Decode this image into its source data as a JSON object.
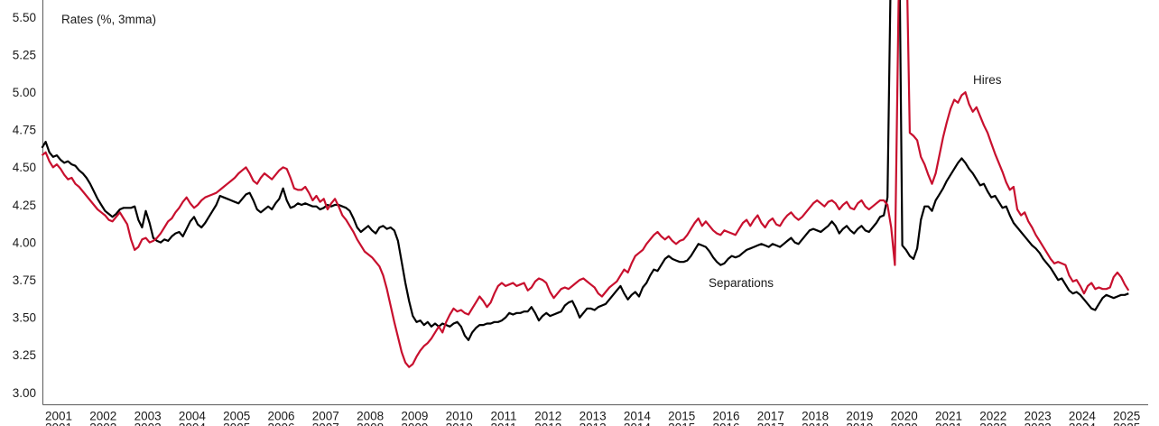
{
  "chart_data": {
    "type": "line",
    "title": "Rates (%, 3mma)",
    "x_axis": {
      "start_year": 2001,
      "start_month": 2,
      "frequency": "monthly",
      "tick_labels": [
        "2001",
        "2002",
        "2003",
        "2004",
        "2005",
        "2006",
        "2007",
        "2008",
        "2009",
        "2010",
        "2011",
        "2012",
        "2013",
        "2014",
        "2015",
        "2016",
        "2017",
        "2018",
        "2019",
        "2020",
        "2021",
        "2022",
        "2023",
        "2024",
        "2025"
      ]
    },
    "y_axis": {
      "min": 3.0,
      "max": 5.5,
      "step": 0.25,
      "tick_labels": [
        "5.50",
        "5.25",
        "5.00",
        "4.75",
        "4.50",
        "4.25",
        "4.00",
        "3.75",
        "3.50",
        "3.25",
        "3.00"
      ]
    },
    "legend_position": "inline-annotations",
    "grid": false,
    "annotations": [
      {
        "text": "Hires",
        "series": "Hires"
      },
      {
        "text": "Separations",
        "series": "Separations"
      }
    ],
    "series": [
      {
        "name": "Hires",
        "color": "#c8102e",
        "values": [
          4.58,
          4.6,
          4.54,
          4.5,
          4.52,
          4.49,
          4.45,
          4.42,
          4.43,
          4.39,
          4.37,
          4.34,
          4.31,
          4.28,
          4.25,
          4.22,
          4.2,
          4.18,
          4.15,
          4.14,
          4.17,
          4.2,
          4.16,
          4.12,
          4.02,
          3.95,
          3.97,
          4.02,
          4.03,
          4.0,
          4.01,
          4.03,
          4.06,
          4.1,
          4.14,
          4.16,
          4.2,
          4.23,
          4.27,
          4.3,
          4.26,
          4.23,
          4.25,
          4.28,
          4.3,
          4.31,
          4.32,
          4.33,
          4.35,
          4.37,
          4.39,
          4.41,
          4.43,
          4.46,
          4.48,
          4.5,
          4.46,
          4.41,
          4.39,
          4.43,
          4.46,
          4.44,
          4.42,
          4.45,
          4.48,
          4.5,
          4.49,
          4.43,
          4.36,
          4.35,
          4.35,
          4.37,
          4.33,
          4.28,
          4.31,
          4.27,
          4.29,
          4.22,
          4.26,
          4.29,
          4.24,
          4.18,
          4.15,
          4.11,
          4.07,
          4.02,
          3.98,
          3.94,
          3.92,
          3.9,
          3.87,
          3.84,
          3.78,
          3.69,
          3.58,
          3.47,
          3.37,
          3.27,
          3.2,
          3.17,
          3.19,
          3.24,
          3.28,
          3.31,
          3.33,
          3.36,
          3.4,
          3.44,
          3.4,
          3.47,
          3.52,
          3.56,
          3.54,
          3.55,
          3.53,
          3.52,
          3.56,
          3.6,
          3.64,
          3.61,
          3.57,
          3.6,
          3.66,
          3.71,
          3.73,
          3.71,
          3.72,
          3.73,
          3.71,
          3.72,
          3.73,
          3.68,
          3.7,
          3.74,
          3.76,
          3.75,
          3.73,
          3.67,
          3.63,
          3.66,
          3.69,
          3.7,
          3.69,
          3.71,
          3.73,
          3.75,
          3.76,
          3.74,
          3.72,
          3.7,
          3.66,
          3.64,
          3.67,
          3.7,
          3.72,
          3.74,
          3.78,
          3.82,
          3.8,
          3.86,
          3.91,
          3.93,
          3.95,
          3.99,
          4.02,
          4.05,
          4.07,
          4.04,
          4.02,
          4.04,
          4.01,
          3.99,
          4.01,
          4.02,
          4.05,
          4.09,
          4.13,
          4.16,
          4.11,
          4.14,
          4.11,
          4.08,
          4.06,
          4.05,
          4.08,
          4.07,
          4.06,
          4.05,
          4.09,
          4.13,
          4.15,
          4.11,
          4.15,
          4.18,
          4.13,
          4.1,
          4.14,
          4.16,
          4.12,
          4.11,
          4.15,
          4.18,
          4.2,
          4.17,
          4.15,
          4.17,
          4.2,
          4.23,
          4.26,
          4.28,
          4.26,
          4.24,
          4.27,
          4.28,
          4.26,
          4.22,
          4.25,
          4.27,
          4.23,
          4.22,
          4.26,
          4.28,
          4.24,
          4.22,
          4.24,
          4.26,
          4.28,
          4.28,
          4.25,
          4.1,
          3.85,
          5.6,
          6.3,
          6.1,
          4.73,
          4.71,
          4.68,
          4.57,
          4.52,
          4.45,
          4.39,
          4.46,
          4.58,
          4.7,
          4.8,
          4.89,
          4.95,
          4.93,
          4.98,
          5.0,
          4.92,
          4.87,
          4.9,
          4.84,
          4.78,
          4.73,
          4.66,
          4.59,
          4.53,
          4.47,
          4.4,
          4.35,
          4.37,
          4.22,
          4.18,
          4.2,
          4.14,
          4.1,
          4.05,
          4.01,
          3.97,
          3.93,
          3.89,
          3.86,
          3.87,
          3.86,
          3.85,
          3.78,
          3.74,
          3.75,
          3.71,
          3.66,
          3.71,
          3.73,
          3.69,
          3.7,
          3.69,
          3.69,
          3.7,
          3.77,
          3.8,
          3.77,
          3.72,
          3.68
        ]
      },
      {
        "name": "Separations",
        "color": "#000000",
        "values": [
          4.63,
          4.67,
          4.6,
          4.57,
          4.58,
          4.55,
          4.53,
          4.54,
          4.52,
          4.51,
          4.48,
          4.46,
          4.43,
          4.39,
          4.34,
          4.29,
          4.25,
          4.21,
          4.19,
          4.17,
          4.19,
          4.22,
          4.23,
          4.23,
          4.23,
          4.24,
          4.15,
          4.1,
          4.21,
          4.13,
          4.03,
          4.01,
          4.0,
          4.02,
          4.01,
          4.04,
          4.06,
          4.07,
          4.04,
          4.09,
          4.14,
          4.17,
          4.12,
          4.1,
          4.13,
          4.17,
          4.21,
          4.25,
          4.31,
          4.3,
          4.29,
          4.28,
          4.27,
          4.26,
          4.29,
          4.32,
          4.33,
          4.28,
          4.22,
          4.2,
          4.22,
          4.24,
          4.22,
          4.26,
          4.29,
          4.36,
          4.28,
          4.23,
          4.24,
          4.26,
          4.25,
          4.26,
          4.25,
          4.24,
          4.24,
          4.22,
          4.23,
          4.25,
          4.24,
          4.25,
          4.25,
          4.24,
          4.23,
          4.21,
          4.16,
          4.1,
          4.07,
          4.09,
          4.11,
          4.08,
          4.06,
          4.1,
          4.11,
          4.09,
          4.1,
          4.08,
          4.01,
          3.87,
          3.73,
          3.61,
          3.51,
          3.47,
          3.48,
          3.45,
          3.47,
          3.44,
          3.46,
          3.44,
          3.46,
          3.45,
          3.44,
          3.46,
          3.47,
          3.44,
          3.38,
          3.35,
          3.4,
          3.43,
          3.45,
          3.45,
          3.46,
          3.46,
          3.47,
          3.47,
          3.48,
          3.5,
          3.53,
          3.52,
          3.53,
          3.53,
          3.54,
          3.54,
          3.57,
          3.53,
          3.48,
          3.51,
          3.53,
          3.51,
          3.52,
          3.53,
          3.54,
          3.58,
          3.6,
          3.61,
          3.56,
          3.5,
          3.53,
          3.56,
          3.56,
          3.55,
          3.57,
          3.58,
          3.59,
          3.62,
          3.65,
          3.68,
          3.71,
          3.66,
          3.62,
          3.65,
          3.67,
          3.64,
          3.7,
          3.73,
          3.78,
          3.82,
          3.81,
          3.85,
          3.89,
          3.91,
          3.89,
          3.88,
          3.87,
          3.87,
          3.88,
          3.91,
          3.95,
          3.99,
          3.98,
          3.97,
          3.94,
          3.9,
          3.87,
          3.85,
          3.86,
          3.89,
          3.91,
          3.9,
          3.91,
          3.93,
          3.95,
          3.96,
          3.97,
          3.98,
          3.99,
          3.98,
          3.97,
          3.99,
          3.98,
          3.97,
          3.99,
          4.01,
          4.03,
          4.0,
          3.99,
          4.02,
          4.05,
          4.08,
          4.09,
          4.08,
          4.07,
          4.09,
          4.11,
          4.14,
          4.11,
          4.06,
          4.09,
          4.11,
          4.08,
          4.06,
          4.09,
          4.11,
          4.08,
          4.07,
          4.1,
          4.13,
          4.17,
          4.18,
          4.3,
          6.0,
          7.3,
          6.5,
          3.98,
          3.95,
          3.91,
          3.89,
          3.96,
          4.15,
          4.24,
          4.24,
          4.21,
          4.28,
          4.32,
          4.36,
          4.41,
          4.45,
          4.49,
          4.53,
          4.56,
          4.53,
          4.49,
          4.46,
          4.42,
          4.38,
          4.39,
          4.34,
          4.3,
          4.31,
          4.27,
          4.23,
          4.24,
          4.18,
          4.13,
          4.1,
          4.07,
          4.04,
          4.01,
          3.98,
          3.96,
          3.93,
          3.89,
          3.86,
          3.83,
          3.79,
          3.75,
          3.76,
          3.72,
          3.68,
          3.66,
          3.67,
          3.65,
          3.62,
          3.59,
          3.56,
          3.55,
          3.59,
          3.63,
          3.65,
          3.64,
          3.63,
          3.64,
          3.65,
          3.65,
          3.66
        ]
      }
    ]
  }
}
